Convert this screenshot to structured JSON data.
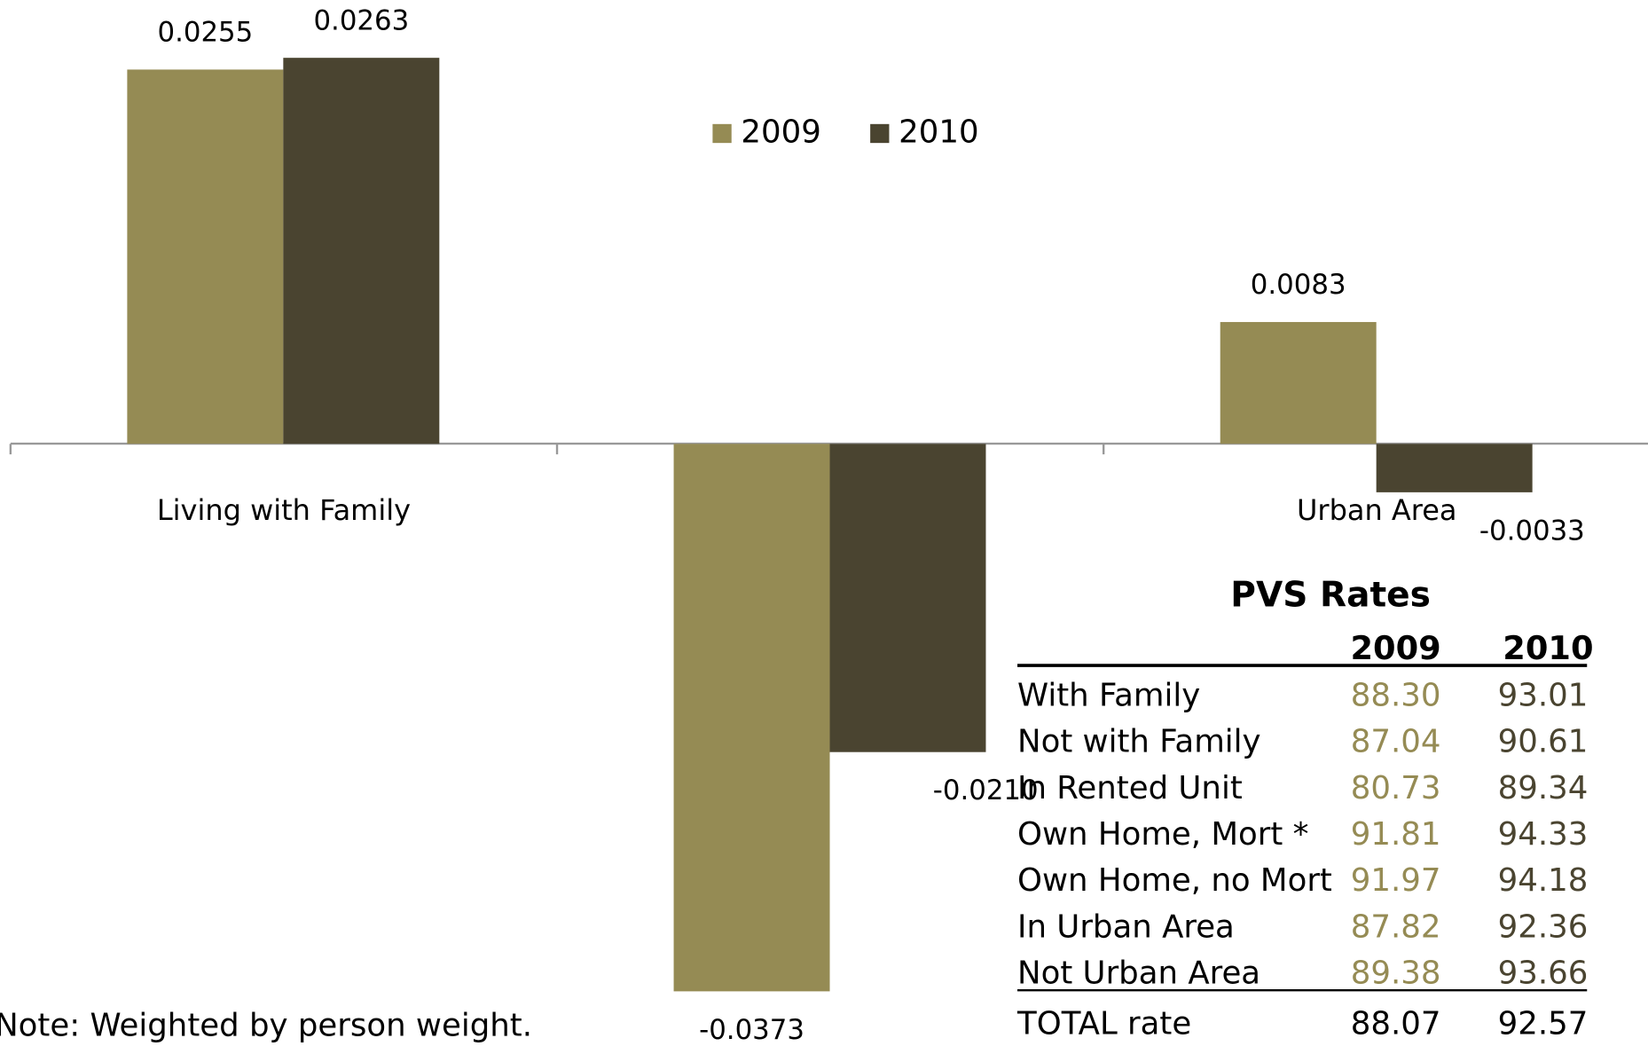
{
  "chart_data": {
    "type": "bar",
    "categories": [
      "Living with Family",
      null,
      "Urban Area"
    ],
    "series": [
      {
        "name": "2009",
        "color": "#958b54",
        "values": [
          0.0255,
          -0.0373,
          0.0083
        ],
        "value_labels": [
          "0.0255",
          "-0.0373",
          "0.0083"
        ]
      },
      {
        "name": "2010",
        "color": "#4a4430",
        "values": [
          0.0263,
          -0.021,
          -0.0033
        ],
        "value_labels": [
          "0.0263",
          "-0.0210",
          "-0.0033"
        ]
      }
    ]
  },
  "table": {
    "title": "PVS Rates",
    "header": [
      "2009",
      "2010"
    ],
    "rows": [
      [
        "With Family",
        "88.30",
        "93.01"
      ],
      [
        "Not with Family",
        "87.04",
        "90.61"
      ],
      [
        "In Rented Unit",
        "80.73",
        "89.34"
      ],
      [
        "Own Home, Mort *",
        "91.81",
        "94.33"
      ],
      [
        "Own Home, no Mort",
        "91.97",
        "94.18"
      ],
      [
        "In Urban Area",
        "87.82",
        "92.36"
      ],
      [
        "Not Urban Area",
        "89.38",
        "93.66"
      ]
    ],
    "total": [
      "TOTAL rate",
      "88.07",
      "92.57"
    ]
  },
  "note": "Note: Weighted by person weight."
}
